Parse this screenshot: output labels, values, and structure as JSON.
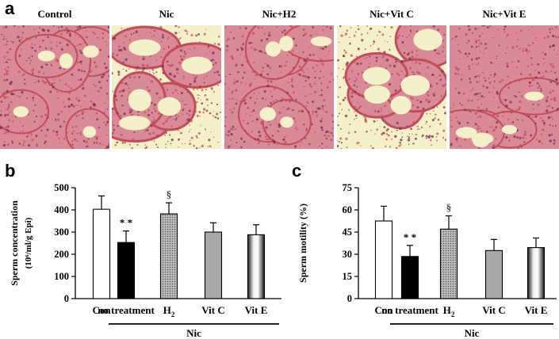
{
  "panels": {
    "a": "a",
    "b": "b",
    "c": "c"
  },
  "micrographs": [
    {
      "label": "Control",
      "variant": "control"
    },
    {
      "label": "Nic",
      "variant": "nic"
    },
    {
      "label": "Nic+H2",
      "variant": "h2"
    },
    {
      "label": "Nic+Vit C",
      "variant": "vitc"
    },
    {
      "label": "Nic+Vit E",
      "variant": "vite"
    }
  ],
  "chart_data": [
    {
      "type": "bar",
      "panel": "b",
      "categories": [
        "Con",
        "no treatment",
        "H2",
        "Vit C",
        "Vit E"
      ],
      "values": [
        403,
        253,
        382,
        300,
        288
      ],
      "errors": [
        60,
        52,
        50,
        42,
        45
      ],
      "patterns": [
        "white",
        "black",
        "dots",
        "gray",
        "gradient"
      ],
      "annotations": [
        "",
        "* *",
        "§",
        "",
        ""
      ],
      "group_label": "Nic",
      "group_categories": [
        "no treatment",
        "H2",
        "Vit C",
        "Vit E"
      ],
      "ylabel_main": "Sperm concentration",
      "ylabel_unit": "(10⁶/ml/g Epi)",
      "ylim": [
        0,
        500
      ],
      "yticks": [
        0,
        100,
        200,
        300,
        400,
        500
      ],
      "grid": false
    },
    {
      "type": "bar",
      "panel": "c",
      "categories": [
        "Con",
        "no treatment",
        "H2",
        "Vit C",
        "Vit E"
      ],
      "values": [
        52.5,
        28.5,
        47,
        32.5,
        34.5
      ],
      "errors": [
        10,
        7.5,
        9,
        7.5,
        6.5
      ],
      "patterns": [
        "white",
        "black",
        "dots",
        "gray",
        "gradient"
      ],
      "annotations": [
        "",
        "* *",
        "§",
        "",
        ""
      ],
      "group_label": "Nic",
      "group_categories": [
        "no treatment",
        "H2",
        "Vit C",
        "Vit E"
      ],
      "ylabel_main": "Sperm motility (%)",
      "ylabel_unit": "",
      "ylim": [
        0,
        75
      ],
      "yticks": [
        0,
        15,
        30,
        45,
        60,
        75
      ],
      "grid": false
    }
  ],
  "colors": {
    "tissue_pink": "#d98a96",
    "tissue_red": "#c24b5c",
    "lumen": "#f4f1c8",
    "bar_gray": "#a8a8a8",
    "bar_black": "#000000"
  }
}
